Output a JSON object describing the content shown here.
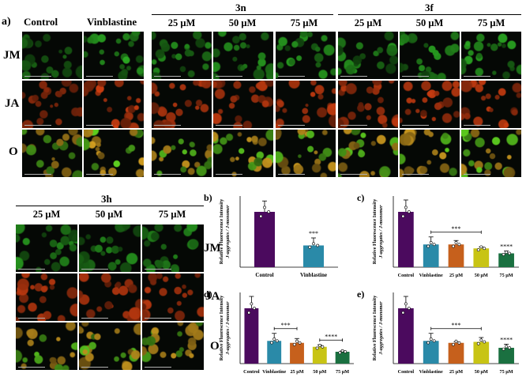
{
  "figure": {
    "panel_a": {
      "label": "a)",
      "column_headers": [
        "Control",
        "Vinblastine"
      ],
      "group_3n": {
        "name": "3n",
        "concentrations": [
          "25 μM",
          "50 μM",
          "75 μM"
        ]
      },
      "group_3f": {
        "name": "3f",
        "concentrations": [
          "25 μM",
          "50 μM",
          "75 μM"
        ]
      },
      "rows": [
        "JM",
        "JA",
        "O"
      ]
    },
    "panel_3h": {
      "name": "3h",
      "concentrations": [
        "25 μM",
        "50 μM",
        "75 μM"
      ],
      "rows": [
        "JM",
        "JA",
        "O"
      ]
    },
    "colors": {
      "jm_green": "#1f7a1f",
      "ja_red": "#8a2a0a",
      "overlay": "#8a6a10",
      "control_bar": "#4b0a5e",
      "vinblastine_bar": "#2a8aa8",
      "c25_bar": "#c6601c",
      "c50_bar": "#c8c414",
      "c75_bar": "#1a7040",
      "scale_bar": "#b0b0b0"
    }
  },
  "chart_data": [
    {
      "panel": "b)",
      "type": "bar",
      "ylabel_line1": "Relative Fluorescence Intensity",
      "ylabel_line2": "J-aggregates / J-monomer",
      "categories": [
        "Control",
        "Vinblastine"
      ],
      "values": [
        2.8,
        1.1
      ],
      "errors": [
        0.55,
        0.38
      ],
      "annotations": [
        {
          "text": "***",
          "over": "Vinblastine"
        }
      ],
      "ylim": [
        0,
        3.6
      ]
    },
    {
      "panel": "c)",
      "type": "bar",
      "ylabel_line1": "Relative Fluorescence Intensity",
      "ylabel_line2": "J-aggregates / J-monomer",
      "categories": [
        "Control",
        "Vinblastine",
        "25 μM",
        "50 μM",
        "75 μM"
      ],
      "values": [
        2.8,
        1.15,
        1.15,
        0.95,
        0.7
      ],
      "errors": [
        0.6,
        0.38,
        0.2,
        0.08,
        0.12
      ],
      "annotations": [
        {
          "text": "***",
          "bracket": [
            "Vinblastine",
            "50 μM"
          ]
        },
        {
          "text": "****",
          "over": "75 μM"
        }
      ],
      "ylim": [
        0,
        3.6
      ]
    },
    {
      "panel": "d)",
      "type": "bar",
      "ylabel_line1": "Relative Fluorescence Intensity",
      "ylabel_line2": "J-aggregates / J-monomer",
      "categories": [
        "Control",
        "Vinblastine",
        "25 μM",
        "50 μM",
        "75 μM"
      ],
      "values": [
        2.8,
        1.15,
        1.05,
        0.85,
        0.6
      ],
      "errors": [
        0.6,
        0.38,
        0.22,
        0.1,
        0.04
      ],
      "annotations": [
        {
          "text": "***",
          "bracket": [
            "Vinblastine",
            "25 μM"
          ]
        },
        {
          "text": "****",
          "bracket": [
            "50 μM",
            "75 μM"
          ]
        }
      ],
      "ylim": [
        0,
        3.6
      ]
    },
    {
      "panel": "e)",
      "type": "bar",
      "ylabel_line1": "Relative Fluorescence Intensity",
      "ylabel_line2": "J-aggregates / J-monomer",
      "categories": [
        "Control",
        "Vinblastine",
        "25 μM",
        "50 μM",
        "75 μM"
      ],
      "values": [
        2.8,
        1.15,
        1.05,
        1.1,
        0.8
      ],
      "errors": [
        0.6,
        0.38,
        0.05,
        0.22,
        0.18
      ],
      "annotations": [
        {
          "text": "***",
          "bracket": [
            "Vinblastine",
            "50 μM"
          ]
        },
        {
          "text": "****",
          "over": "75 μM"
        }
      ],
      "ylim": [
        0,
        3.6
      ]
    }
  ]
}
